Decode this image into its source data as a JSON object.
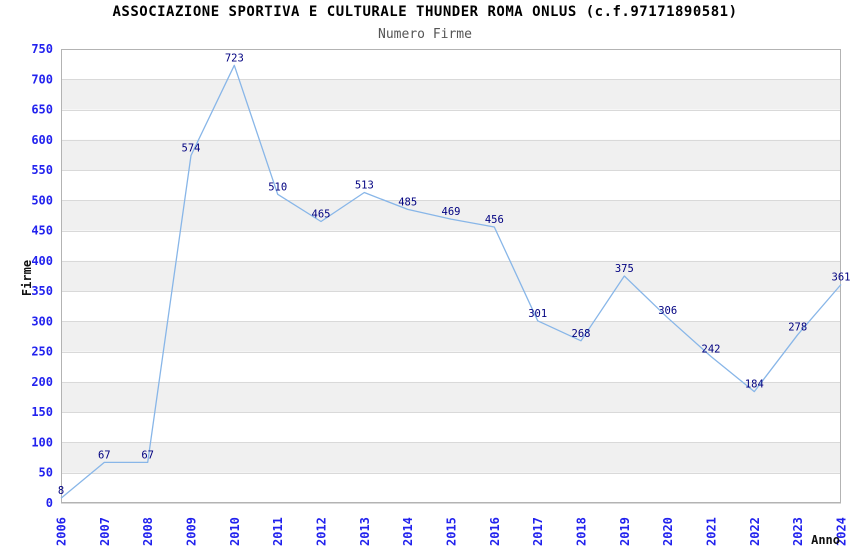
{
  "chart_data": {
    "type": "line",
    "title": "ASSOCIAZIONE SPORTIVA E CULTURALE THUNDER ROMA ONLUS (c.f.97171890581)",
    "subtitle": "Numero Firme",
    "xlabel": "Anno",
    "ylabel": "Firme",
    "categories": [
      "2006",
      "2007",
      "2008",
      "2009",
      "2010",
      "2011",
      "2012",
      "2013",
      "2014",
      "2015",
      "2016",
      "2017",
      "2018",
      "2019",
      "2020",
      "2021",
      "2022",
      "2023",
      "2024"
    ],
    "values": [
      8,
      67,
      67,
      574,
      723,
      510,
      465,
      513,
      485,
      469,
      456,
      301,
      268,
      375,
      306,
      242,
      184,
      278,
      361
    ],
    "ylim": [
      0,
      750
    ],
    "ytick_step": 50,
    "yticks": [
      0,
      50,
      100,
      150,
      200,
      250,
      300,
      350,
      400,
      450,
      500,
      550,
      600,
      650,
      700,
      750
    ],
    "grid": "horizontal gridlines with alternating gray bands",
    "legend_position": "none",
    "colors": {
      "line": "#88b6e8",
      "tick_label": "#2222ee",
      "value_label": "#000080",
      "band": "#f0f0f0",
      "gridline": "#d9d9d9",
      "border": "#b3b3b3",
      "title": "#000000",
      "subtitle": "#555555",
      "axis_title": "#111111",
      "background": "#ffffff"
    }
  }
}
